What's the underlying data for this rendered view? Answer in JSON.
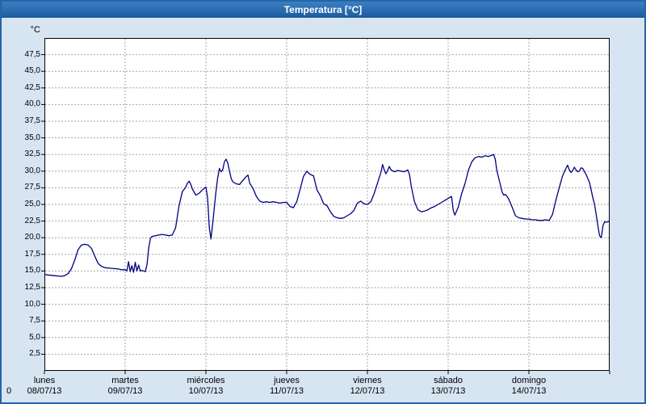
{
  "window": {
    "title": "Temperatura [°C]"
  },
  "footer": {
    "left_label": "0"
  },
  "chart_data": {
    "type": "line",
    "title": "Temperatura [°C]",
    "y_unit_label": "°C",
    "grid": "dashed",
    "legend": "none",
    "y_axis": {
      "min": 0,
      "max": 50,
      "tick_step": 2.5,
      "tick_labels": [
        "47,5",
        "45,0",
        "42,5",
        "40,0",
        "37,5",
        "35,0",
        "32,5",
        "30,0",
        "27,5",
        "25,0",
        "22,5",
        "20,0",
        "17,5",
        "15,0",
        "12,5",
        "10,0",
        "7,5",
        "5,0",
        "2,5"
      ]
    },
    "x_axis": {
      "unit": "hours",
      "total_hours": 168,
      "day_ticks": [
        {
          "name": "lunes",
          "date": "08/07/13"
        },
        {
          "name": "martes",
          "date": "09/07/13"
        },
        {
          "name": "miércoles",
          "date": "10/07/13"
        },
        {
          "name": "jueves",
          "date": "11/07/13"
        },
        {
          "name": "viernes",
          "date": "12/07/13"
        },
        {
          "name": "sábado",
          "date": "13/07/13"
        },
        {
          "name": "domingo",
          "date": "14/07/13"
        }
      ]
    },
    "series": [
      {
        "name": "Temperatura",
        "color": "#000080",
        "points": [
          [
            0,
            14.5
          ],
          [
            1,
            14.4
          ],
          [
            3,
            14.3
          ],
          [
            5,
            14.2
          ],
          [
            6,
            14.3
          ],
          [
            7,
            14.6
          ],
          [
            8,
            15.3
          ],
          [
            9,
            16.6
          ],
          [
            10,
            18.2
          ],
          [
            11,
            18.9
          ],
          [
            12,
            19.0
          ],
          [
            13,
            18.9
          ],
          [
            14,
            18.4
          ],
          [
            15,
            17.2
          ],
          [
            16,
            16.1
          ],
          [
            17,
            15.7
          ],
          [
            18,
            15.5
          ],
          [
            20,
            15.4
          ],
          [
            22,
            15.3
          ],
          [
            23,
            15.2
          ],
          [
            24,
            15.2
          ],
          [
            24.5,
            15.0
          ],
          [
            25,
            16.4
          ],
          [
            25.5,
            14.9
          ],
          [
            26,
            15.8
          ],
          [
            26.5,
            14.8
          ],
          [
            27,
            16.3
          ],
          [
            27.5,
            15.0
          ],
          [
            28,
            15.9
          ],
          [
            28.5,
            15.0
          ],
          [
            29,
            15.1
          ],
          [
            30,
            14.9
          ],
          [
            30.5,
            16.0
          ],
          [
            31,
            18.5
          ],
          [
            31.5,
            19.9
          ],
          [
            32,
            20.2
          ],
          [
            33,
            20.3
          ],
          [
            34,
            20.4
          ],
          [
            35,
            20.5
          ],
          [
            36,
            20.4
          ],
          [
            37,
            20.3
          ],
          [
            38,
            20.4
          ],
          [
            39,
            21.5
          ],
          [
            40,
            24.8
          ],
          [
            41,
            26.9
          ],
          [
            42,
            27.6
          ],
          [
            42.5,
            28.2
          ],
          [
            43,
            28.5
          ],
          [
            43.5,
            28.0
          ],
          [
            44,
            27.3
          ],
          [
            45,
            26.4
          ],
          [
            46,
            26.7
          ],
          [
            47,
            27.2
          ],
          [
            48,
            27.6
          ],
          [
            48.5,
            26.0
          ],
          [
            49,
            21.5
          ],
          [
            49.5,
            19.8
          ],
          [
            50,
            22.0
          ],
          [
            50.5,
            24.5
          ],
          [
            51,
            27.0
          ],
          [
            51.5,
            29.0
          ],
          [
            52,
            30.4
          ],
          [
            52.5,
            29.9
          ],
          [
            53,
            30.2
          ],
          [
            53.5,
            31.4
          ],
          [
            54,
            31.8
          ],
          [
            54.5,
            31.2
          ],
          [
            55,
            30.0
          ],
          [
            55.5,
            28.9
          ],
          [
            56,
            28.4
          ],
          [
            57,
            28.1
          ],
          [
            58,
            28.0
          ],
          [
            59,
            28.6
          ],
          [
            60,
            29.2
          ],
          [
            60.5,
            29.4
          ],
          [
            61,
            28.2
          ],
          [
            62,
            27.4
          ],
          [
            63,
            26.2
          ],
          [
            64,
            25.5
          ],
          [
            65,
            25.3
          ],
          [
            66,
            25.4
          ],
          [
            67,
            25.3
          ],
          [
            68,
            25.4
          ],
          [
            69,
            25.3
          ],
          [
            70,
            25.2
          ],
          [
            71,
            25.3
          ],
          [
            72,
            25.3
          ],
          [
            73,
            24.7
          ],
          [
            74,
            24.5
          ],
          [
            75,
            25.4
          ],
          [
            76,
            27.3
          ],
          [
            77,
            29.2
          ],
          [
            78,
            30.0
          ],
          [
            78.5,
            29.7
          ],
          [
            79,
            29.5
          ],
          [
            80,
            29.3
          ],
          [
            81,
            27.2
          ],
          [
            82,
            26.3
          ],
          [
            83,
            25.1
          ],
          [
            84,
            24.8
          ],
          [
            85,
            23.9
          ],
          [
            86,
            23.2
          ],
          [
            87,
            23.0
          ],
          [
            88,
            22.9
          ],
          [
            89,
            23.0
          ],
          [
            90,
            23.3
          ],
          [
            91,
            23.6
          ],
          [
            92,
            24.1
          ],
          [
            93,
            25.2
          ],
          [
            94,
            25.5
          ],
          [
            95,
            25.1
          ],
          [
            96,
            25.0
          ],
          [
            97,
            25.4
          ],
          [
            98,
            26.6
          ],
          [
            99,
            28.2
          ],
          [
            100,
            29.8
          ],
          [
            100.5,
            31.0
          ],
          [
            101,
            30.2
          ],
          [
            101.5,
            29.6
          ],
          [
            102,
            30.1
          ],
          [
            102.5,
            30.7
          ],
          [
            103,
            30.2
          ],
          [
            104,
            29.9
          ],
          [
            105,
            30.1
          ],
          [
            106,
            30.0
          ],
          [
            107,
            29.9
          ],
          [
            108,
            30.2
          ],
          [
            108.5,
            29.5
          ],
          [
            109,
            27.8
          ],
          [
            110,
            25.4
          ],
          [
            111,
            24.2
          ],
          [
            112,
            23.9
          ],
          [
            113,
            24.0
          ],
          [
            114,
            24.2
          ],
          [
            115,
            24.5
          ],
          [
            116,
            24.7
          ],
          [
            117,
            25.0
          ],
          [
            118,
            25.3
          ],
          [
            119,
            25.6
          ],
          [
            120,
            25.9
          ],
          [
            121,
            26.2
          ],
          [
            121.5,
            24.1
          ],
          [
            122,
            23.4
          ],
          [
            123,
            24.6
          ],
          [
            124,
            26.6
          ],
          [
            125,
            28.1
          ],
          [
            126,
            30.1
          ],
          [
            127,
            31.4
          ],
          [
            128,
            32.0
          ],
          [
            129,
            32.2
          ],
          [
            130,
            32.1
          ],
          [
            131,
            32.3
          ],
          [
            132,
            32.2
          ],
          [
            133,
            32.4
          ],
          [
            133.5,
            32.5
          ],
          [
            134,
            31.8
          ],
          [
            134.5,
            30.0
          ],
          [
            135,
            29.0
          ],
          [
            136,
            26.9
          ],
          [
            136.5,
            26.4
          ],
          [
            137,
            26.5
          ],
          [
            137.5,
            26.2
          ],
          [
            138,
            25.8
          ],
          [
            139,
            24.6
          ],
          [
            140,
            23.3
          ],
          [
            141,
            23.0
          ],
          [
            142,
            22.9
          ],
          [
            143,
            22.8
          ],
          [
            144,
            22.8
          ],
          [
            145,
            22.7
          ],
          [
            146,
            22.7
          ],
          [
            147,
            22.6
          ],
          [
            148,
            22.6
          ],
          [
            149,
            22.7
          ],
          [
            150,
            22.6
          ],
          [
            151,
            23.5
          ],
          [
            152,
            25.6
          ],
          [
            153,
            27.5
          ],
          [
            154,
            29.3
          ],
          [
            155,
            30.4
          ],
          [
            155.5,
            30.9
          ],
          [
            156,
            30.2
          ],
          [
            156.5,
            29.8
          ],
          [
            157,
            30.1
          ],
          [
            157.5,
            30.6
          ],
          [
            158,
            30.2
          ],
          [
            158.5,
            29.9
          ],
          [
            159,
            30.0
          ],
          [
            159.5,
            30.5
          ],
          [
            160,
            30.4
          ],
          [
            160.5,
            29.9
          ],
          [
            161,
            29.5
          ],
          [
            162,
            28.3
          ],
          [
            163,
            26.0
          ],
          [
            163.5,
            25.0
          ],
          [
            164,
            23.5
          ],
          [
            164.5,
            21.8
          ],
          [
            165,
            20.3
          ],
          [
            165.5,
            20.0
          ],
          [
            166,
            21.8
          ],
          [
            166.5,
            22.4
          ],
          [
            167,
            22.3
          ],
          [
            168,
            22.5
          ]
        ]
      }
    ]
  }
}
